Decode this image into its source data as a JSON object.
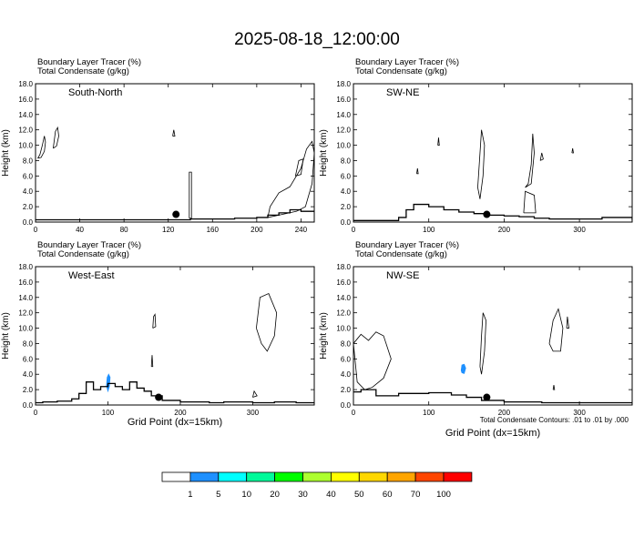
{
  "title": "2025-08-18_12:00:00",
  "footnote": "Total Condensate Contours: .01 to .01 by .000",
  "xlabel": "Grid Point (dx=15km)",
  "colorbar": {
    "colors": [
      "#ffffff",
      "#1e90ff",
      "#00ffff",
      "#00fa9a",
      "#00ff00",
      "#adff2f",
      "#ffff00",
      "#ffd700",
      "#ffa500",
      "#ff4500",
      "#ff0000"
    ],
    "labels": [
      "1",
      "5",
      "10",
      "20",
      "30",
      "40",
      "50",
      "60",
      "70",
      "100"
    ]
  },
  "chart_data": [
    {
      "type": "line",
      "header_line1": "Boundary Layer Tracer   (%)",
      "header_line2": "Total Condensate   (g/kg)",
      "label": "South-North",
      "ylabel": "Height (km)",
      "xlabel": "",
      "xlim": [
        0,
        252
      ],
      "ylim": [
        0,
        18
      ],
      "xticks": [
        0,
        40,
        80,
        120,
        160,
        200,
        240
      ],
      "yticks": [
        0.0,
        2.0,
        4.0,
        6.0,
        8.0,
        10.0,
        12.0,
        14.0,
        16.0,
        18.0
      ],
      "boundary_layer_height": [
        [
          0,
          0.3
        ],
        [
          60,
          0.3
        ],
        [
          120,
          0.3
        ],
        [
          130,
          0.3
        ],
        [
          140,
          0.4
        ],
        [
          160,
          0.4
        ],
        [
          180,
          0.5
        ],
        [
          200,
          0.6
        ],
        [
          210,
          0.9
        ],
        [
          220,
          1.2
        ],
        [
          230,
          1.6
        ],
        [
          240,
          1.4
        ],
        [
          252,
          1.5
        ]
      ],
      "marker": {
        "x": 127,
        "y": 1.0
      },
      "condensate_contours": [
        [
          [
            2,
            8.3
          ],
          [
            4,
            8.8
          ],
          [
            6,
            9.9
          ],
          [
            8,
            11.2
          ],
          [
            9,
            10.4
          ],
          [
            8,
            9.2
          ],
          [
            5,
            8.4
          ],
          [
            2,
            8.3
          ]
        ],
        [
          [
            16,
            9.6
          ],
          [
            18,
            11.8
          ],
          [
            20,
            12.3
          ],
          [
            21,
            11.2
          ],
          [
            19,
            9.9
          ],
          [
            16,
            9.6
          ]
        ],
        [
          [
            124,
            11.2
          ],
          [
            125,
            12.0
          ],
          [
            126,
            11.2
          ],
          [
            124,
            11.2
          ]
        ],
        [
          [
            139,
            0.5
          ],
          [
            139,
            6.5
          ],
          [
            141,
            6.5
          ],
          [
            141,
            0.5
          ],
          [
            139,
            0.5
          ]
        ],
        [
          [
            210,
            0.6
          ],
          [
            212,
            2.0
          ],
          [
            220,
            3.8
          ],
          [
            230,
            4.6
          ],
          [
            240,
            7.0
          ],
          [
            245,
            9.5
          ],
          [
            250,
            10.5
          ],
          [
            252,
            9.0
          ],
          [
            250,
            5.0
          ],
          [
            244,
            2.0
          ],
          [
            236,
            1.4
          ],
          [
            220,
            0.9
          ],
          [
            210,
            0.6
          ]
        ],
        [
          [
            235,
            6.0
          ],
          [
            238,
            8.0
          ],
          [
            242,
            8.2
          ],
          [
            240,
            6.2
          ],
          [
            235,
            6.0
          ]
        ]
      ],
      "fill_contours": []
    },
    {
      "type": "line",
      "header_line1": "Boundary Layer Tracer   (%)",
      "header_line2": "Total Condensate   (g/kg)",
      "label": "SW-NE",
      "ylabel": "Height (km)",
      "xlabel": "",
      "xlim": [
        0,
        370
      ],
      "ylim": [
        0,
        18
      ],
      "xticks": [
        0,
        100,
        200,
        300
      ],
      "yticks": [
        0.0,
        2.0,
        4.0,
        6.0,
        8.0,
        10.0,
        12.0,
        14.0,
        16.0,
        18.0
      ],
      "boundary_layer_height": [
        [
          0,
          0.2
        ],
        [
          40,
          0.2
        ],
        [
          60,
          0.6
        ],
        [
          70,
          1.6
        ],
        [
          80,
          2.3
        ],
        [
          100,
          2.0
        ],
        [
          120,
          1.6
        ],
        [
          140,
          1.3
        ],
        [
          160,
          1.1
        ],
        [
          180,
          0.9
        ],
        [
          200,
          0.8
        ],
        [
          220,
          0.7
        ],
        [
          240,
          0.5
        ],
        [
          260,
          0.4
        ],
        [
          300,
          0.4
        ],
        [
          330,
          0.6
        ],
        [
          350,
          0.6
        ],
        [
          370,
          0.2
        ]
      ],
      "marker": {
        "x": 177,
        "y": 1.0
      },
      "condensate_contours": [
        [
          [
            112,
            10.0
          ],
          [
            113,
            11.0
          ],
          [
            114,
            10.0
          ],
          [
            112,
            10.0
          ]
        ],
        [
          [
            165,
            4.5
          ],
          [
            168,
            9.0
          ],
          [
            170,
            12.0
          ],
          [
            174,
            10.0
          ],
          [
            172,
            6.0
          ],
          [
            168,
            3.0
          ],
          [
            165,
            4.5
          ]
        ],
        [
          [
            228,
            4.5
          ],
          [
            232,
            5.0
          ],
          [
            236,
            7.5
          ],
          [
            238,
            11.5
          ],
          [
            240,
            9.0
          ],
          [
            236,
            5.0
          ],
          [
            228,
            4.5
          ]
        ],
        [
          [
            248,
            8.0
          ],
          [
            250,
            9.0
          ],
          [
            252,
            8.2
          ],
          [
            248,
            8.0
          ]
        ],
        [
          [
            226,
            1.2
          ],
          [
            228,
            4.0
          ],
          [
            240,
            3.5
          ],
          [
            242,
            1.2
          ],
          [
            226,
            1.2
          ]
        ],
        [
          [
            290,
            9.0
          ],
          [
            291,
            9.6
          ],
          [
            292,
            9.0
          ],
          [
            290,
            9.0
          ]
        ],
        [
          [
            84,
            6.3
          ],
          [
            85,
            7.0
          ],
          [
            86,
            6.3
          ],
          [
            84,
            6.3
          ]
        ]
      ],
      "fill_contours": []
    },
    {
      "type": "line",
      "header_line1": "Boundary Layer Tracer   (%)",
      "header_line2": "Total Condensate   (g/kg)",
      "label": "West-East",
      "ylabel": "Height (km)",
      "xlabel": "Grid Point (dx=15km)",
      "xlim": [
        0,
        385
      ],
      "ylim": [
        0,
        18
      ],
      "xticks": [
        0,
        100,
        200,
        300
      ],
      "yticks": [
        0.0,
        2.0,
        4.0,
        6.0,
        8.0,
        10.0,
        12.0,
        14.0,
        16.0,
        18.0
      ],
      "boundary_layer_height": [
        [
          0,
          0.3
        ],
        [
          10,
          0.4
        ],
        [
          30,
          0.5
        ],
        [
          50,
          0.8
        ],
        [
          60,
          1.5
        ],
        [
          70,
          3.0
        ],
        [
          80,
          2.0
        ],
        [
          90,
          2.4
        ],
        [
          100,
          2.8
        ],
        [
          110,
          2.4
        ],
        [
          120,
          2.0
        ],
        [
          130,
          3.0
        ],
        [
          140,
          2.2
        ],
        [
          150,
          1.8
        ],
        [
          160,
          1.2
        ],
        [
          175,
          0.6
        ],
        [
          200,
          0.4
        ],
        [
          240,
          0.3
        ],
        [
          260,
          0.4
        ],
        [
          300,
          0.3
        ],
        [
          330,
          0.4
        ],
        [
          360,
          0.3
        ],
        [
          385,
          0.3
        ]
      ],
      "marker": {
        "x": 170,
        "y": 1.0
      },
      "condensate_contours": [
        [
          [
            162,
            10.0
          ],
          [
            163,
            11.5
          ],
          [
            165,
            11.8
          ],
          [
            166,
            10.2
          ],
          [
            162,
            10.0
          ]
        ],
        [
          [
            160,
            5.0
          ],
          [
            161,
            6.5
          ],
          [
            162,
            5.0
          ],
          [
            160,
            5.0
          ]
        ],
        [
          [
            305,
            10.0
          ],
          [
            310,
            14.0
          ],
          [
            322,
            14.5
          ],
          [
            333,
            12.0
          ],
          [
            330,
            9.0
          ],
          [
            320,
            7.0
          ],
          [
            312,
            8.0
          ],
          [
            305,
            10.0
          ]
        ],
        [
          [
            300,
            1.0
          ],
          [
            302,
            1.8
          ],
          [
            306,
            1.2
          ],
          [
            300,
            1.0
          ]
        ]
      ],
      "fill_contours": [
        [
          [
            98,
            2.5
          ],
          [
            99,
            3.6
          ],
          [
            101,
            4.0
          ],
          [
            103,
            3.6
          ],
          [
            102,
            2.4
          ],
          [
            100,
            1.8
          ],
          [
            98,
            2.5
          ]
        ]
      ]
    },
    {
      "type": "line",
      "header_line1": "Boundary Layer Tracer   (%)",
      "header_line2": "Total Condensate   (g/kg)",
      "label": "NW-SE",
      "ylabel": "Height (km)",
      "xlabel": "Grid Point (dx=15km)",
      "xlim": [
        0,
        370
      ],
      "ylim": [
        0,
        18
      ],
      "xticks": [
        0,
        100,
        200,
        300
      ],
      "yticks": [
        0.0,
        2.0,
        4.0,
        6.0,
        8.0,
        10.0,
        12.0,
        14.0,
        16.0,
        18.0
      ],
      "boundary_layer_height": [
        [
          0,
          1.7
        ],
        [
          10,
          2.0
        ],
        [
          30,
          1.2
        ],
        [
          60,
          1.5
        ],
        [
          100,
          1.6
        ],
        [
          130,
          1.3
        ],
        [
          150,
          1.0
        ],
        [
          170,
          0.6
        ],
        [
          200,
          0.4
        ],
        [
          250,
          0.3
        ],
        [
          300,
          0.3
        ],
        [
          370,
          0.2
        ]
      ],
      "marker": {
        "x": 177,
        "y": 1.0
      },
      "condensate_contours": [
        [
          [
            0,
            8.0
          ],
          [
            10,
            9.2
          ],
          [
            20,
            8.4
          ],
          [
            30,
            9.5
          ],
          [
            40,
            9.0
          ],
          [
            50,
            6.0
          ],
          [
            40,
            3.5
          ],
          [
            25,
            2.3
          ],
          [
            15,
            2.0
          ],
          [
            5,
            3.0
          ],
          [
            0,
            8.0
          ]
        ],
        [
          [
            168,
            5.0
          ],
          [
            170,
            9.0
          ],
          [
            172,
            12.0
          ],
          [
            176,
            11.0
          ],
          [
            174,
            7.0
          ],
          [
            170,
            4.0
          ],
          [
            168,
            5.0
          ]
        ],
        [
          [
            260,
            8.0
          ],
          [
            265,
            11.0
          ],
          [
            272,
            12.5
          ],
          [
            278,
            10.0
          ],
          [
            275,
            7.0
          ],
          [
            265,
            7.0
          ],
          [
            260,
            8.0
          ]
        ],
        [
          [
            283,
            10.0
          ],
          [
            284,
            11.5
          ],
          [
            286,
            10.0
          ],
          [
            283,
            10.0
          ]
        ],
        [
          [
            265,
            2.0
          ],
          [
            266,
            2.6
          ],
          [
            267,
            2.0
          ],
          [
            265,
            2.0
          ]
        ]
      ],
      "fill_contours": [
        [
          [
            143,
            4.5
          ],
          [
            144,
            5.2
          ],
          [
            147,
            5.3
          ],
          [
            149,
            4.8
          ],
          [
            147,
            4.1
          ],
          [
            144,
            4.2
          ],
          [
            143,
            4.5
          ]
        ]
      ]
    }
  ]
}
